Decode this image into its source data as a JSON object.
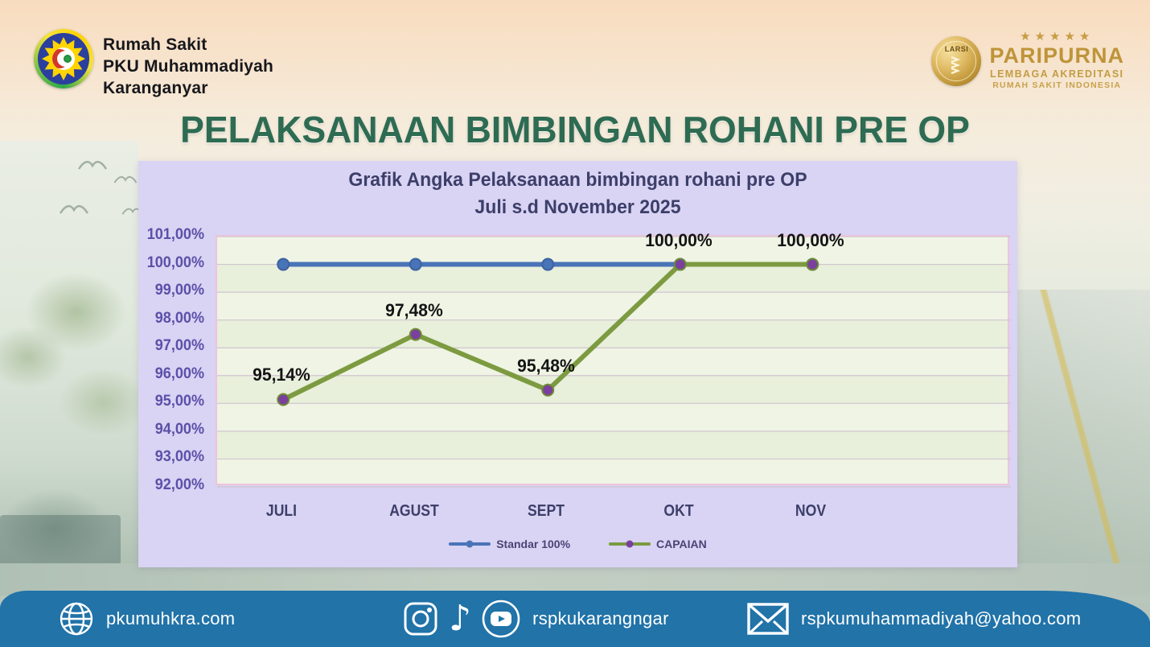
{
  "header": {
    "hospital": {
      "line1": "Rumah Sakit",
      "line2": "PKU Muhammadiyah",
      "line3": "Karanganyar"
    },
    "accreditation": {
      "stars": "★★★★★",
      "medal_label": "LARSI",
      "title": "PARIPURNA",
      "subtitle1": "LEMBAGA AKREDITASI",
      "subtitle2": "RUMAH SAKIT INDONESIA"
    }
  },
  "page_title": "PELAKSANAAN BIMBINGAN ROHANI PRE OP",
  "chart_data": {
    "type": "line",
    "title_line1": "Grafik Angka  Pelaksanaan bimbingan rohani pre OP",
    "title_line2": "Juli s.d November 2025",
    "categories": [
      "JULI",
      "AGUST",
      "SEPT",
      "OKT",
      "NOV"
    ],
    "series": [
      {
        "name": "Standar 100%",
        "values": [
          100,
          100,
          100,
          100,
          100
        ],
        "color": "#4A74B8",
        "marker_color": "#4A74B8",
        "marker_ring": "#3D62A0"
      },
      {
        "name": "CAPAIAN",
        "values": [
          95.14,
          97.48,
          95.48,
          100,
          100
        ],
        "color": "#7C9B40",
        "marker_color": "#7B3F9E",
        "marker_ring": "#6E8C34"
      }
    ],
    "data_labels": [
      "95,14%",
      "97,48%",
      "95,48%",
      "100,00%",
      "100,00%"
    ],
    "y_ticks": [
      "101,00%",
      "100,00%",
      "99,00%",
      "98,00%",
      "97,00%",
      "96,00%",
      "95,00%",
      "94,00%",
      "93,00%",
      "92,00%"
    ],
    "ylim": [
      92,
      101
    ],
    "grid": true,
    "legend_position": "bottom"
  },
  "footer": {
    "website": "pkumuhkra.com",
    "social_handle": "rspkukarangngar",
    "email": "rspkumuhammadiyah@yahoo.com"
  },
  "colors": {
    "title_green": "#2E6B53",
    "panel_bg": "#D9D3F4",
    "plot_bg": "#EBF1DE",
    "plot_border": "#EFC3DC",
    "gridline": "#CFC5CF",
    "axis_text": "#5B50A8",
    "category_text": "#3C3F69",
    "footer_bar": "#2173A8",
    "gold": "#BE9439"
  }
}
